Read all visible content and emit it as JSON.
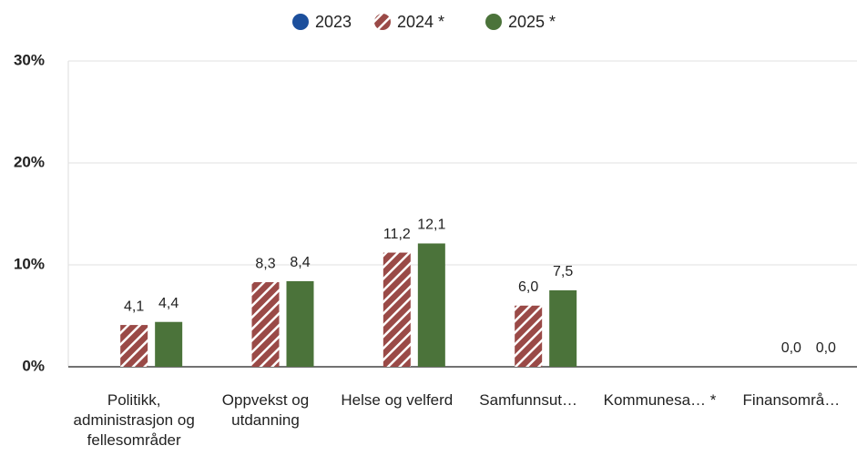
{
  "chart_data": {
    "type": "bar",
    "categories": [
      "Politikk, administrasjon og fellesområder",
      "Oppvekst og utdanning",
      "Helse og velferd",
      "Samfunnsut…",
      "Kommunesa… *",
      "Finansområ…"
    ],
    "series": [
      {
        "name": "2023",
        "color": "#1c4f9c",
        "values": [
          null,
          null,
          null,
          null,
          null,
          null
        ]
      },
      {
        "name": "2024 *",
        "color": "#9a4a47",
        "hatch": true,
        "values": [
          4.1,
          8.3,
          11.2,
          6.0,
          null,
          0.0
        ],
        "value_labels": [
          "4,1",
          "8,3",
          "11,2",
          "6,0",
          null,
          "0,0"
        ]
      },
      {
        "name": "2025 *",
        "color": "#4b733a",
        "values": [
          4.4,
          8.4,
          12.1,
          7.5,
          null,
          0.0
        ],
        "value_labels": [
          "4,4",
          "8,4",
          "12,1",
          "7,5",
          null,
          "0,0"
        ]
      }
    ],
    "ylim": [
      0,
      30
    ],
    "yticks": [
      {
        "value": 0,
        "label": "0%"
      },
      {
        "value": 10,
        "label": "10%"
      },
      {
        "value": 20,
        "label": "20%"
      },
      {
        "value": 30,
        "label": "30%"
      }
    ],
    "grid": true
  }
}
